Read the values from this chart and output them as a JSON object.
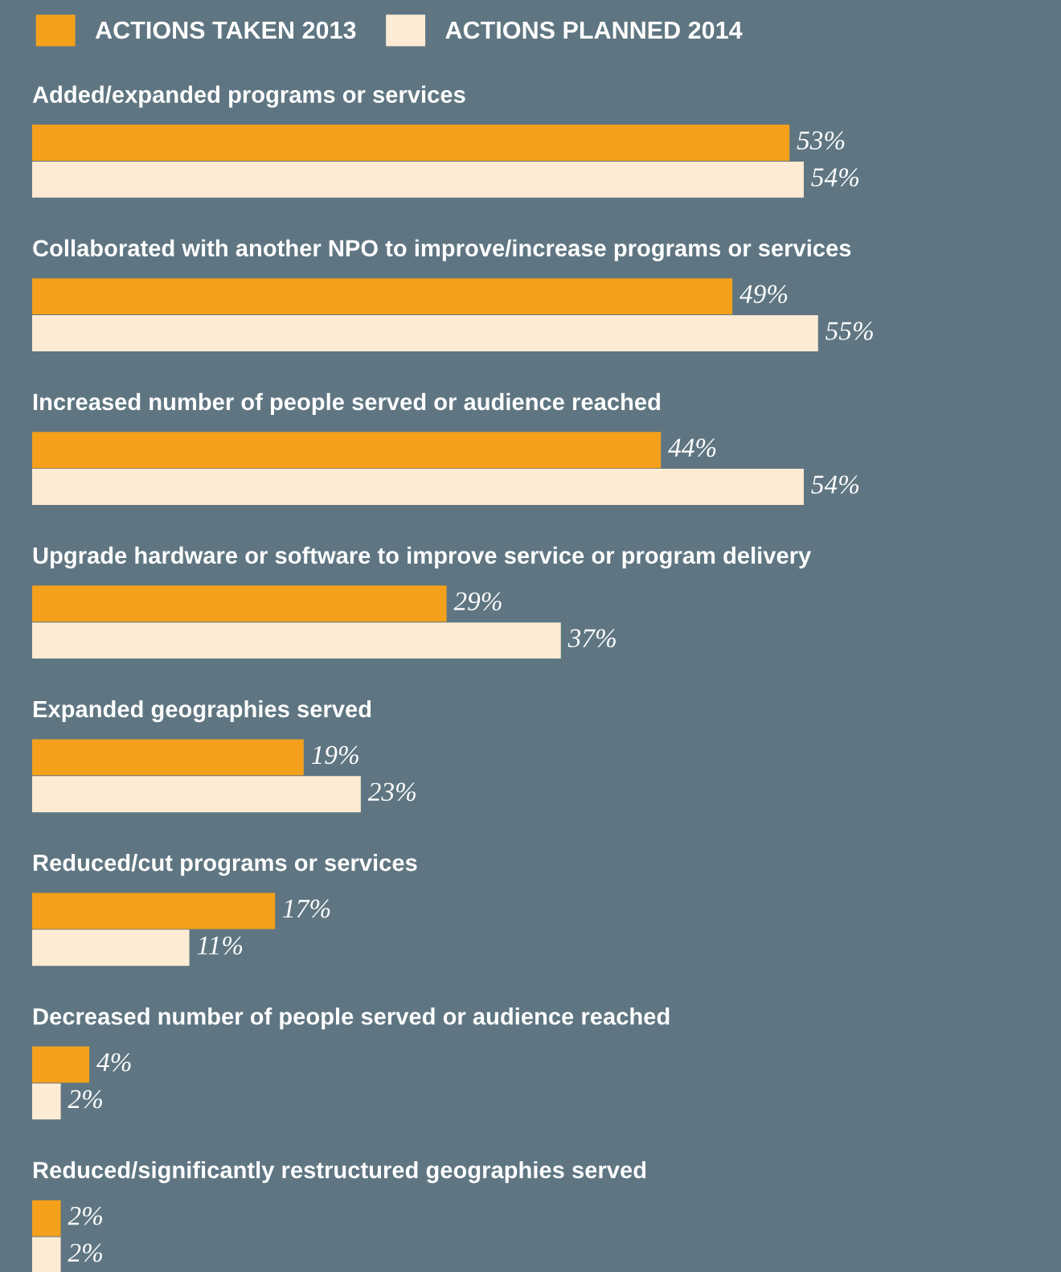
{
  "chart_data": {
    "type": "bar",
    "orientation": "horizontal",
    "legend": "top left",
    "categories": [
      "Added/expanded programs or services",
      "Collaborated with another NPO to improve/increase programs or services",
      "Increased number of people served or audience reached",
      "Upgrade hardware or software to improve service or program delivery",
      "Expanded geographies served",
      "Reduced/cut programs or services",
      "Decreased number of people served or audience reached",
      "Reduced/significantly restructured geographies served"
    ],
    "xlim": [
      0,
      72
    ],
    "series": [
      {
        "name": "ACTIONS TAKEN 2013",
        "color": "#f5a01b",
        "values": [
          53,
          49,
          44,
          29,
          19,
          17,
          4,
          2
        ],
        "value_labels": [
          "53%",
          "49%",
          "44%",
          "29%",
          "19%",
          "17%",
          "4%",
          "2%"
        ]
      },
      {
        "name": "ACTIONS PLANNED 2014",
        "color": "#fdebd4",
        "values": [
          54,
          55,
          54,
          37,
          23,
          11,
          2,
          2
        ],
        "value_labels": [
          "54%",
          "55%",
          "54%",
          "37%",
          "23%",
          "11%",
          "2%",
          "2%"
        ]
      }
    ]
  }
}
